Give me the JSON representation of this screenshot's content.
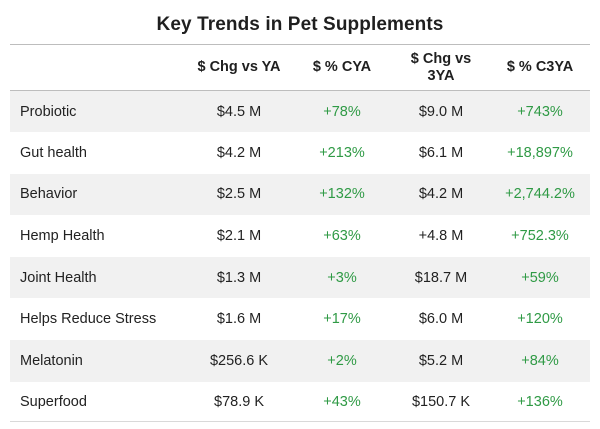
{
  "title": "Key Trends in Pet Supplements",
  "columns": [
    "",
    "$ Chg vs YA",
    "$ % CYA",
    "$ Chg vs 3YA",
    "$ % C3YA"
  ],
  "rows": [
    {
      "name": "Probiotic",
      "chg_ya": "$4.5 M",
      "pct_cya": "+78%",
      "chg_3ya": "$9.0 M",
      "pct_c3ya": "+743%"
    },
    {
      "name": "Gut health",
      "chg_ya": "$4.2 M",
      "pct_cya": "+213%",
      "chg_3ya": "$6.1 M",
      "pct_c3ya": "+18,897%"
    },
    {
      "name": "Behavior",
      "chg_ya": "$2.5 M",
      "pct_cya": "+132%",
      "chg_3ya": "$4.2 M",
      "pct_c3ya": "+2,744.2%"
    },
    {
      "name": "Hemp Health",
      "chg_ya": "$2.1 M",
      "pct_cya": "+63%",
      "chg_3ya": "+4.8 M",
      "pct_c3ya": "+752.3%"
    },
    {
      "name": "Joint Health",
      "chg_ya": "$1.3 M",
      "pct_cya": "+3%",
      "chg_3ya": "$18.7 M",
      "pct_c3ya": "+59%"
    },
    {
      "name": "Helps Reduce Stress",
      "chg_ya": "$1.6 M",
      "pct_cya": "+17%",
      "chg_3ya": "$6.0 M",
      "pct_c3ya": "+120%"
    },
    {
      "name": "Melatonin",
      "chg_ya": "$256.6 K",
      "pct_cya": "+2%",
      "chg_3ya": "$5.2 M",
      "pct_c3ya": "+84%"
    },
    {
      "name": "Superfood",
      "chg_ya": "$78.9 K",
      "pct_cya": "+43%",
      "chg_3ya": "$150.7 K",
      "pct_c3ya": "+136%"
    }
  ],
  "colors": {
    "positive_percent": "#2f9a45",
    "row_stripe": "#f1f1f1",
    "rule_line": "#bdbdbd"
  }
}
